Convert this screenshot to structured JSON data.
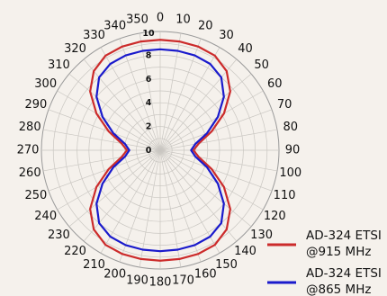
{
  "chart_data": {
    "type": "polar",
    "title": "",
    "angle_labels": [
      "0",
      "10",
      "20",
      "30",
      "40",
      "50",
      "60",
      "70",
      "80",
      "90",
      "100",
      "110",
      "120",
      "130",
      "140",
      "150",
      "160",
      "170",
      "180",
      "190",
      "200",
      "210",
      "220",
      "230",
      "240",
      "250",
      "260",
      "270",
      "280",
      "290",
      "300",
      "310",
      "320",
      "330",
      "340",
      "350"
    ],
    "radial_ticks": [
      "0",
      "2",
      "4",
      "6",
      "8",
      "10"
    ],
    "rlim": [
      0,
      10
    ],
    "grid": true,
    "legend_position": "bottom-right",
    "series": [
      {
        "name_line1": "AD-324 ETSI",
        "name_line2": "@915 MHz",
        "color": "#cc2b2b",
        "angles": [
          0,
          10,
          20,
          30,
          40,
          50,
          60,
          70,
          80,
          90,
          100,
          110,
          120,
          130,
          140,
          150,
          160,
          170,
          180,
          190,
          200,
          210,
          220,
          230,
          240,
          250,
          260,
          270,
          280,
          290,
          300,
          310,
          320,
          330,
          340,
          350
        ],
        "values": [
          9.3,
          9.3,
          9.3,
          9.2,
          8.7,
          7.7,
          6.2,
          4.6,
          3.3,
          2.8,
          3.3,
          4.6,
          6.2,
          7.7,
          8.7,
          9.2,
          9.3,
          9.3,
          9.3,
          9.3,
          9.3,
          9.2,
          8.7,
          7.7,
          6.2,
          4.6,
          3.3,
          2.8,
          3.3,
          4.6,
          6.2,
          7.7,
          8.7,
          9.2,
          9.3,
          9.3
        ]
      },
      {
        "name_line1": "AD-324 ETSI",
        "name_line2": "@865 MHz",
        "color": "#1a1acc",
        "angles": [
          0,
          10,
          20,
          30,
          40,
          50,
          60,
          70,
          80,
          90,
          100,
          110,
          120,
          130,
          140,
          150,
          160,
          170,
          180,
          190,
          200,
          210,
          220,
          230,
          240,
          250,
          260,
          270,
          280,
          290,
          300,
          310,
          320,
          330,
          340,
          350
        ],
        "values": [
          8.5,
          8.5,
          8.5,
          8.4,
          8.0,
          7.0,
          5.6,
          4.2,
          3.0,
          2.6,
          3.0,
          4.2,
          5.6,
          7.0,
          8.0,
          8.4,
          8.5,
          8.5,
          8.5,
          8.5,
          8.5,
          8.4,
          8.0,
          7.0,
          5.6,
          4.2,
          3.0,
          2.6,
          3.0,
          4.2,
          5.6,
          7.0,
          8.0,
          8.4,
          8.5,
          8.5
        ]
      }
    ]
  }
}
